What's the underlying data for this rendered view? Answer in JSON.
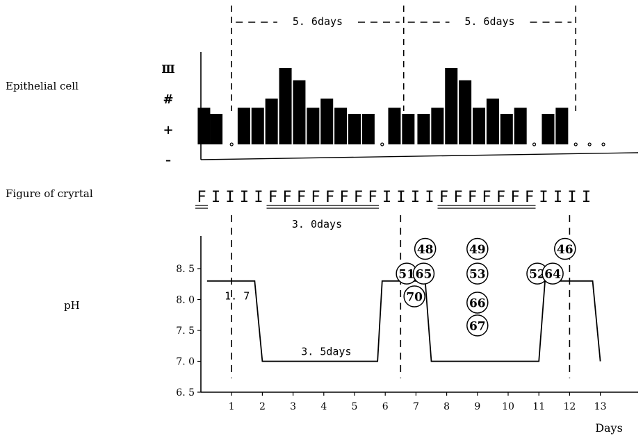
{
  "chart_data": {
    "type": "bar",
    "row_labels": {
      "epithelial": "Epithelial cell",
      "crystal": "Figure of cryrtal",
      "ph": "pH"
    },
    "epithelial": {
      "scale_labels": [
        "–",
        "+",
        "#",
        "Ⅲ"
      ],
      "x_days": [
        0.1,
        0.5,
        1.0,
        1.4,
        1.85,
        2.3,
        2.75,
        3.2,
        3.65,
        4.1,
        4.55,
        5.0,
        5.45,
        5.9,
        6.3,
        6.75,
        7.25,
        7.7,
        8.15,
        8.6,
        9.05,
        9.5,
        9.95,
        10.4,
        10.85,
        11.3,
        11.75,
        12.2,
        12.65,
        13.1
      ],
      "values": [
        1.2,
        1.0,
        0.0,
        1.2,
        1.2,
        1.5,
        2.5,
        2.1,
        1.2,
        1.5,
        1.2,
        1.0,
        1.0,
        0.0,
        1.2,
        1.0,
        1.0,
        1.2,
        2.5,
        2.1,
        1.2,
        1.5,
        1.0,
        1.2,
        0.0,
        1.0,
        1.2,
        0.0,
        0.0,
        0.0
      ]
    },
    "cycle_spans": [
      {
        "label": "5. 6days",
        "start": 1.0,
        "end": 6.6
      },
      {
        "label": "5. 6days",
        "start": 6.6,
        "end": 12.2
      }
    ],
    "crystal": {
      "sequence": [
        "F",
        "I",
        "I",
        "I",
        "I",
        "F",
        "F",
        "F",
        "F",
        "F",
        "F",
        "F",
        "F",
        "I",
        "I",
        "I",
        "I",
        "F",
        "F",
        "F",
        "F",
        "F",
        "F",
        "F",
        "I",
        "I",
        "I",
        "I"
      ],
      "span_label": "3. 0days"
    },
    "ph": {
      "ylim": [
        6.5,
        8.9
      ],
      "yticks": [
        "6. 5",
        "7. 0",
        "7. 5",
        "8. 0",
        "8. 5"
      ],
      "ytick_values": [
        6.5,
        7.0,
        7.5,
        8.0,
        8.5
      ],
      "x": [
        0.2,
        1.75,
        2.0,
        5.75,
        5.9,
        6.8,
        7.3,
        7.5,
        11.0,
        11.2,
        12.75,
        13.0
      ],
      "y": [
        8.3,
        8.3,
        7.0,
        7.0,
        8.3,
        8.3,
        8.3,
        7.0,
        7.0,
        8.3,
        8.3,
        7.0
      ],
      "annotations": [
        {
          "text": "1. 7",
          "x": 1.0,
          "y": 8.0
        },
        {
          "text": "3. 5days",
          "x": 3.9,
          "y": 7.1
        }
      ],
      "circled_numbers": [
        {
          "text": "48",
          "x": 7.3,
          "y": 8.82
        },
        {
          "text": "49",
          "x": 9.0,
          "y": 8.82
        },
        {
          "text": "46",
          "x": 11.85,
          "y": 8.82
        },
        {
          "text": "51",
          "x": 6.7,
          "y": 8.42
        },
        {
          "text": "65",
          "x": 7.25,
          "y": 8.42
        },
        {
          "text": "53",
          "x": 9.0,
          "y": 8.42
        },
        {
          "text": "52",
          "x": 10.95,
          "y": 8.42
        },
        {
          "text": "64",
          "x": 11.45,
          "y": 8.42
        },
        {
          "text": "70",
          "x": 6.95,
          "y": 8.05
        },
        {
          "text": "66",
          "x": 9.0,
          "y": 7.95
        },
        {
          "text": "67",
          "x": 9.0,
          "y": 7.58
        }
      ],
      "dashed_lines_x": [
        1.0,
        6.5,
        12.0
      ]
    },
    "xaxis": {
      "ticks": [
        "1",
        "2",
        "3",
        "4",
        "5",
        "6",
        "7",
        "8",
        "9",
        "10",
        "11",
        "12",
        "13"
      ],
      "tick_values": [
        1,
        2,
        3,
        4,
        5,
        6,
        7,
        8,
        9,
        10,
        11,
        12,
        13
      ],
      "xlabel": "Days",
      "xlim": [
        0,
        14.4
      ]
    }
  }
}
